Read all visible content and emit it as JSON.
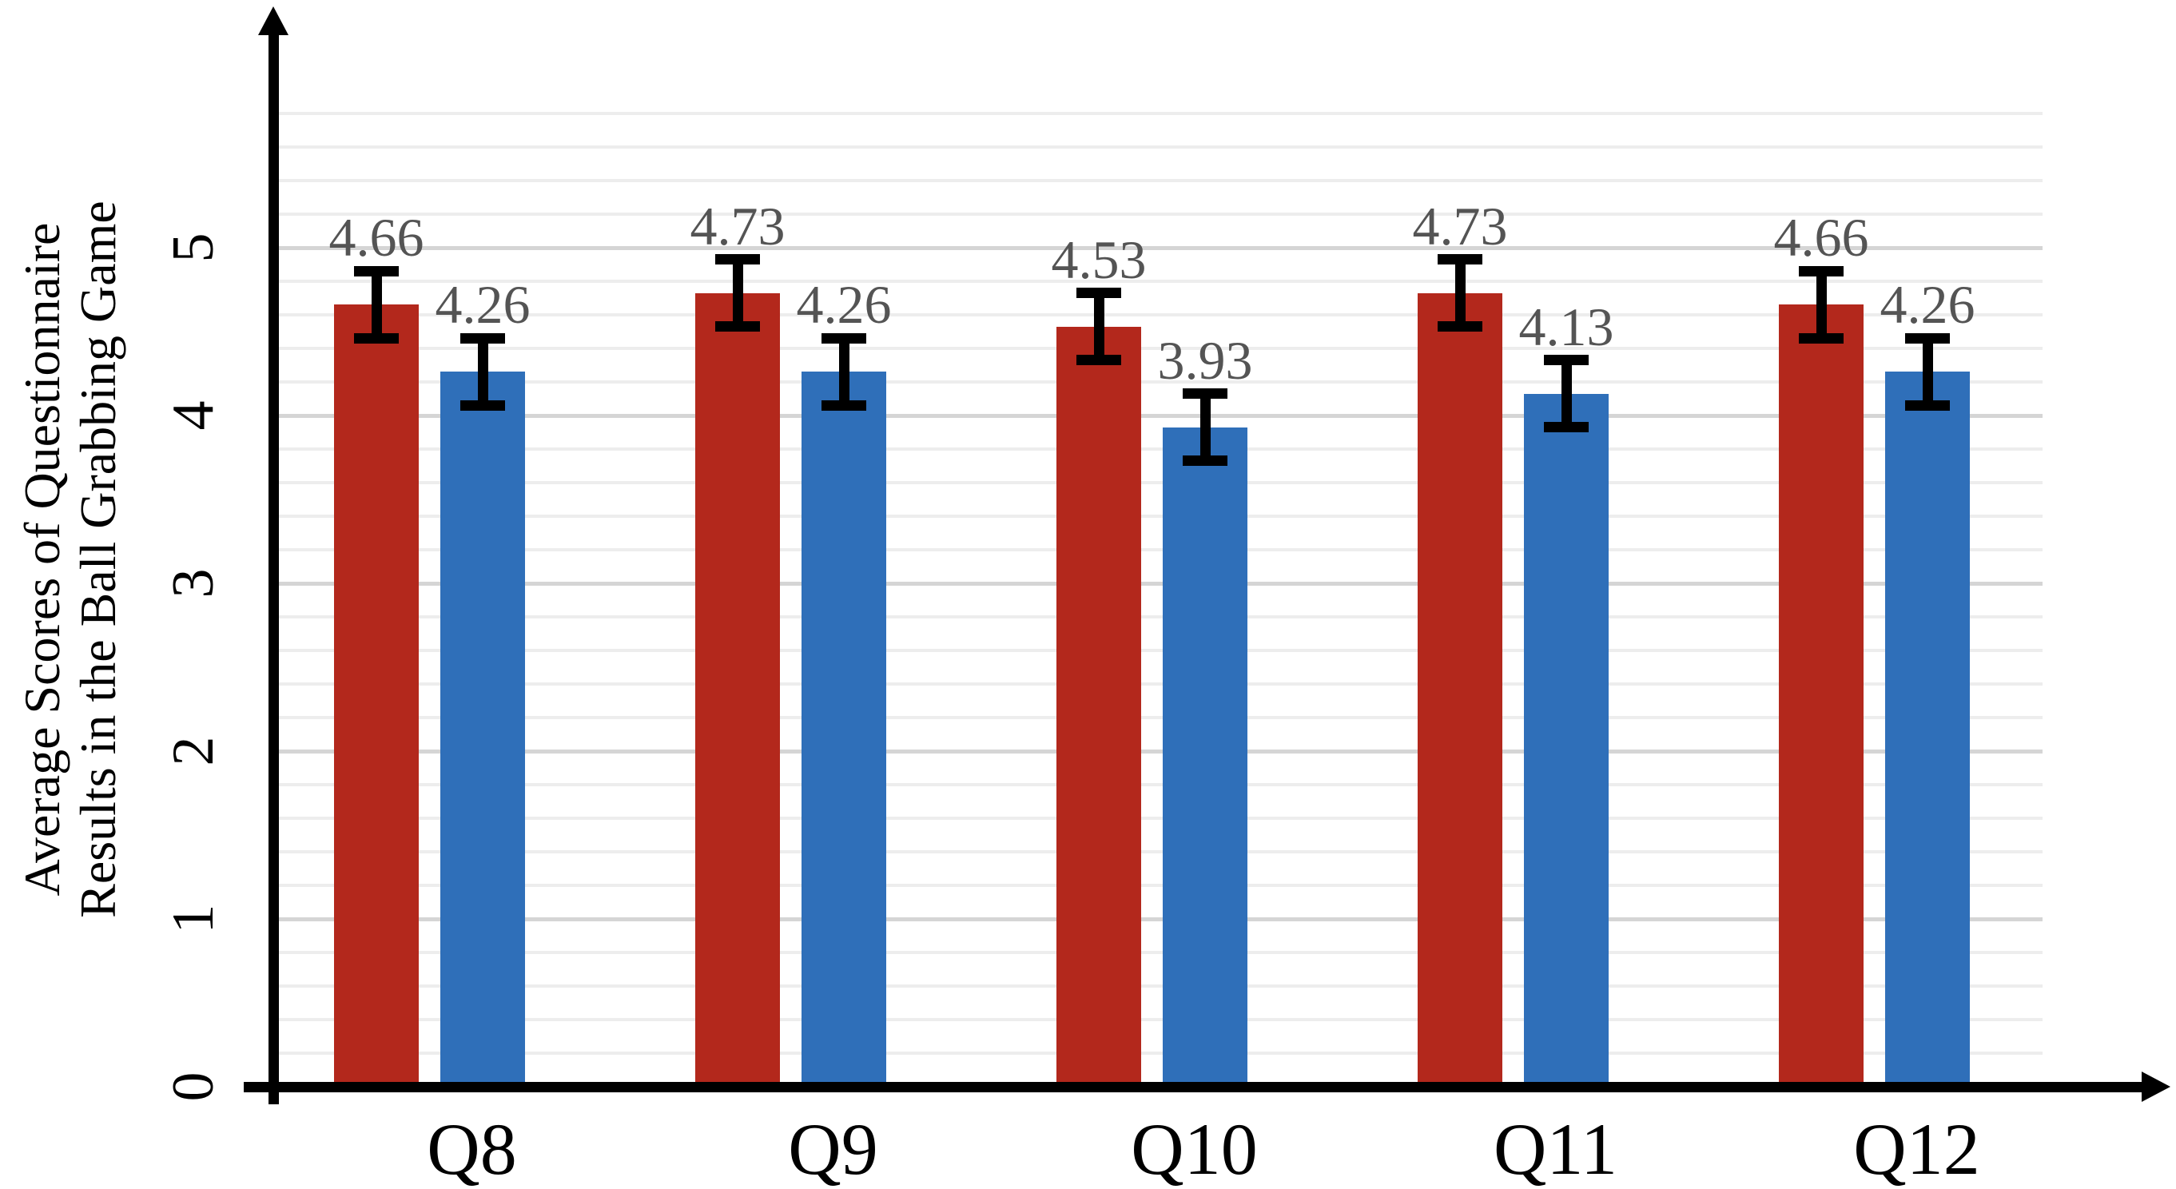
{
  "chart_data": {
    "type": "bar",
    "title": "",
    "ylabel_lines": [
      "Average Scores of Questionnaire",
      "Results in the Ball Grabbing Game"
    ],
    "categories": [
      "Q8",
      "Q9",
      "Q10",
      "Q11",
      "Q12"
    ],
    "series": [
      {
        "name": "red",
        "color": "#B3281C",
        "values": [
          4.66,
          4.73,
          4.53,
          4.73,
          4.66
        ]
      },
      {
        "name": "blue",
        "color": "#2F6FB9",
        "values": [
          4.26,
          4.26,
          3.93,
          4.13,
          4.26
        ]
      }
    ],
    "value_labels": [
      "4.66",
      "4.26",
      "4.73",
      "4.26",
      "4.53",
      "3.93",
      "4.73",
      "4.13",
      "4.66",
      "4.26"
    ],
    "error_bar_extent": 0.2,
    "y_ticks": [
      "0",
      "1",
      "2",
      "3",
      "4",
      "5"
    ],
    "ylim": [
      0,
      5.8
    ],
    "minor_grid_step": 0.2,
    "major_grid_step": 1.0,
    "grid": true,
    "legend_position": "none",
    "xlabel": "",
    "ylabel": "Average Scores of Questionnaire Results in the Ball Grabbing Game"
  },
  "colors": {
    "bar_red": "#B3281C",
    "bar_blue": "#2F6FB9",
    "value_label": "#545454",
    "grid_minor": "#EDEDED",
    "grid_major": "#D5D5D5",
    "axis": "#000000"
  }
}
